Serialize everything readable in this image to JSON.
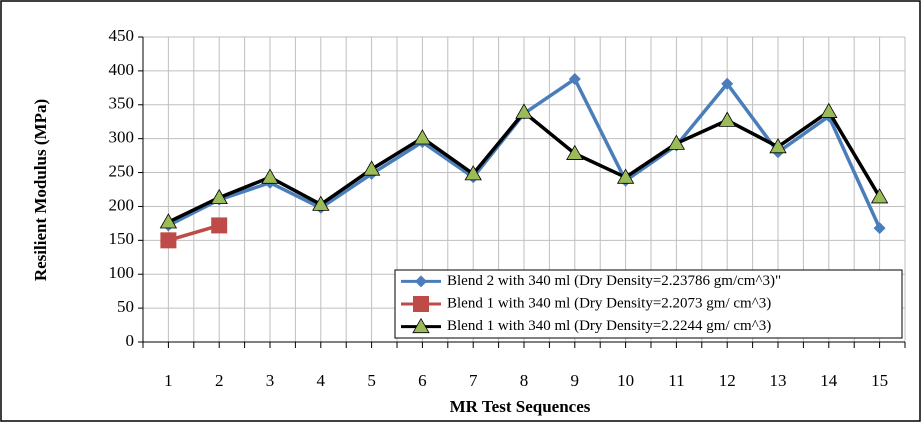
{
  "chart_data": {
    "type": "line",
    "xlabel": "MR Test Sequences",
    "ylabel": "Resilient Modulus (MPa)",
    "categories": [
      "1",
      "2",
      "3",
      "4",
      "5",
      "6",
      "7",
      "8",
      "9",
      "10",
      "11",
      "12",
      "13",
      "14",
      "15"
    ],
    "series": [
      {
        "name": "Blend 2 with 340 ml (Dry Density=2.23786 gm/cm^3)\"",
        "color": "#4a7ebb",
        "marker": "diamond",
        "values": [
          172,
          210,
          235,
          198,
          248,
          295,
          243,
          337,
          388,
          238,
          290,
          381,
          280,
          333,
          168
        ]
      },
      {
        "name": "Blend 1 with 340 ml (Dry Density=2.2073 gm/ cm^3)",
        "color": "#be4b48",
        "marker": "square",
        "values": [
          150,
          172,
          null,
          null,
          null,
          null,
          null,
          null,
          null,
          null,
          null,
          null,
          null,
          null,
          null
        ]
      },
      {
        "name": "Blend 1 with 340 ml (Dry Density=2.2244 gm/ cm^3)",
        "color": "#000000",
        "marker": "triangle",
        "values": [
          177,
          213,
          243,
          203,
          255,
          301,
          248,
          339,
          278,
          243,
          293,
          327,
          288,
          340,
          214
        ]
      }
    ],
    "ylim": [
      0,
      450
    ],
    "yticks": [
      0,
      50,
      100,
      150,
      200,
      250,
      300,
      350,
      400,
      450
    ],
    "grid": true,
    "legend": "lower right"
  }
}
